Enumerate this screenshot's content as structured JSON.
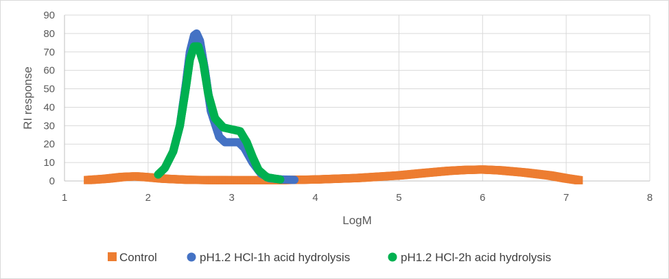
{
  "chart_data": {
    "type": "scatter",
    "title": "",
    "xlabel": "LogM",
    "ylabel": "RI response",
    "xlim": [
      1,
      8
    ],
    "ylim": [
      0,
      90
    ],
    "x_ticks": [
      "1",
      "2",
      "3",
      "4",
      "5",
      "6",
      "7",
      "8"
    ],
    "y_ticks": [
      "0",
      "10",
      "20",
      "30",
      "40",
      "50",
      "60",
      "70",
      "80",
      "90"
    ],
    "grid": "major gridlines on both axes",
    "legend_position": "bottom",
    "series": [
      {
        "name": "Control",
        "color": "#ed7d31",
        "marker": "square",
        "points": [
          [
            1.28,
            0.5
          ],
          [
            1.5,
            1.2
          ],
          [
            1.7,
            2.2
          ],
          [
            1.85,
            2.5
          ],
          [
            2.0,
            2.0
          ],
          [
            2.2,
            1.2
          ],
          [
            2.5,
            0.6
          ],
          [
            3.0,
            0.4
          ],
          [
            3.5,
            0.4
          ],
          [
            4.0,
            0.8
          ],
          [
            4.5,
            1.6
          ],
          [
            5.0,
            3.0
          ],
          [
            5.3,
            4.3
          ],
          [
            5.6,
            5.5
          ],
          [
            5.8,
            6.0
          ],
          [
            6.0,
            6.2
          ],
          [
            6.2,
            5.8
          ],
          [
            6.5,
            4.6
          ],
          [
            6.8,
            3.0
          ],
          [
            7.0,
            1.4
          ],
          [
            7.15,
            0.4
          ]
        ]
      },
      {
        "name": "pH1.2 HCl-1h acid hydrolysis",
        "color": "#4472c4",
        "marker": "circle",
        "points": [
          [
            2.3,
            16
          ],
          [
            2.38,
            30
          ],
          [
            2.45,
            52
          ],
          [
            2.5,
            70
          ],
          [
            2.55,
            79
          ],
          [
            2.58,
            80
          ],
          [
            2.62,
            76
          ],
          [
            2.68,
            60
          ],
          [
            2.75,
            38
          ],
          [
            2.85,
            24
          ],
          [
            2.92,
            21
          ],
          [
            3.0,
            21
          ],
          [
            3.08,
            21
          ],
          [
            3.15,
            18
          ],
          [
            3.25,
            10
          ],
          [
            3.35,
            4
          ],
          [
            3.45,
            1.5
          ],
          [
            3.6,
            0.8
          ],
          [
            3.75,
            0.6
          ]
        ]
      },
      {
        "name": "pH1.2 HCl-2h acid hydrolysis",
        "color": "#00b050",
        "marker": "circle",
        "points": [
          [
            2.12,
            3.5
          ],
          [
            2.2,
            7
          ],
          [
            2.3,
            16
          ],
          [
            2.38,
            30
          ],
          [
            2.45,
            50
          ],
          [
            2.5,
            66
          ],
          [
            2.55,
            73
          ],
          [
            2.6,
            73
          ],
          [
            2.66,
            64
          ],
          [
            2.72,
            47
          ],
          [
            2.8,
            34
          ],
          [
            2.9,
            29
          ],
          [
            3.0,
            28
          ],
          [
            3.1,
            27
          ],
          [
            3.18,
            21
          ],
          [
            3.25,
            13
          ],
          [
            3.32,
            6
          ],
          [
            3.42,
            2
          ],
          [
            3.58,
            0.8
          ]
        ]
      }
    ]
  }
}
